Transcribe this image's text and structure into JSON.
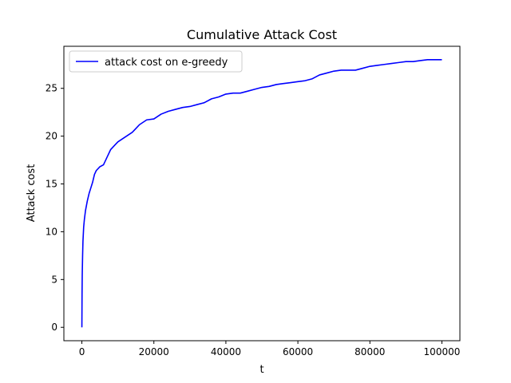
{
  "chart_data": {
    "type": "line",
    "title": "Cumulative Attack Cost",
    "xlabel": "t",
    "ylabel": "Attack cost",
    "xlim": [
      -5000,
      105000
    ],
    "ylim": [
      -1.4,
      29.4
    ],
    "xticks": [
      0,
      20000,
      40000,
      60000,
      80000,
      100000
    ],
    "yticks": [
      0,
      5,
      10,
      15,
      20,
      25
    ],
    "legend_position": "top-left",
    "grid": false,
    "series": [
      {
        "name": "attack cost on e-greedy",
        "color": "#0000ff",
        "x": [
          0,
          50,
          100,
          200,
          300,
          500,
          700,
          1000,
          1500,
          2000,
          2500,
          3000,
          3500,
          4000,
          5000,
          6000,
          7000,
          8000,
          9000,
          10000,
          12000,
          14000,
          15000,
          16000,
          18000,
          20000,
          22000,
          24000,
          26000,
          28000,
          30000,
          32000,
          34000,
          36000,
          38000,
          40000,
          42000,
          44000,
          46000,
          48000,
          50000,
          52000,
          54000,
          56000,
          58000,
          60000,
          62000,
          64000,
          66000,
          68000,
          70000,
          72000,
          74000,
          76000,
          78000,
          80000,
          82000,
          84000,
          86000,
          88000,
          90000,
          92000,
          94000,
          96000,
          98000,
          100000
        ],
        "y": [
          0,
          3.5,
          5.5,
          7.5,
          9.0,
          10.5,
          11.3,
          12.2,
          13.2,
          14.0,
          14.6,
          15.2,
          16.0,
          16.4,
          16.8,
          17.0,
          17.8,
          18.6,
          19.0,
          19.4,
          19.9,
          20.4,
          20.8,
          21.2,
          21.7,
          21.8,
          22.3,
          22.6,
          22.8,
          23.0,
          23.1,
          23.3,
          23.5,
          23.9,
          24.1,
          24.4,
          24.5,
          24.5,
          24.7,
          24.9,
          25.1,
          25.2,
          25.4,
          25.5,
          25.6,
          25.7,
          25.8,
          26.0,
          26.4,
          26.6,
          26.8,
          26.9,
          26.9,
          26.9,
          27.1,
          27.3,
          27.4,
          27.5,
          27.6,
          27.7,
          27.8,
          27.8,
          27.9,
          28.0,
          28.0,
          28.0
        ]
      }
    ]
  }
}
